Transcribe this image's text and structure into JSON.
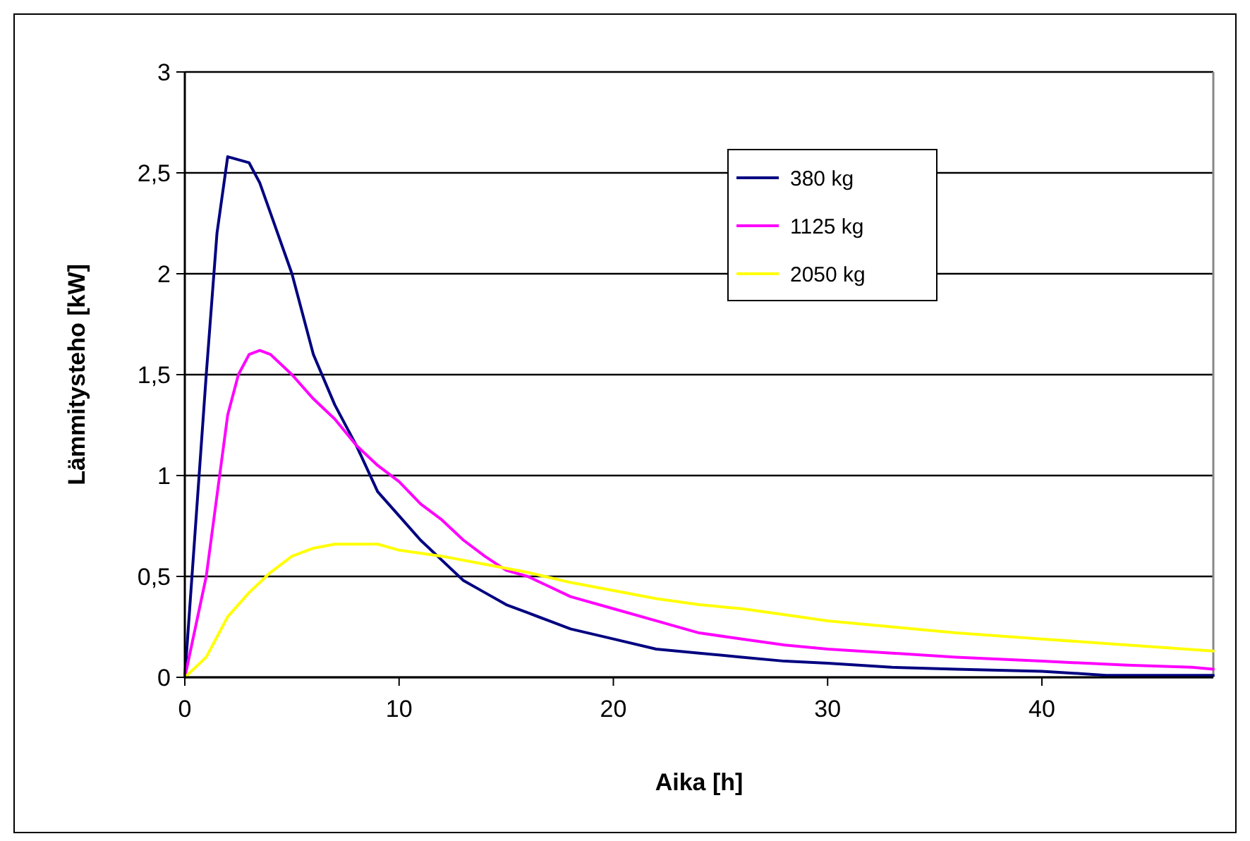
{
  "chart_data": {
    "type": "line",
    "xlabel": "Aika [h]",
    "ylabel": "Lämmitysteho [kW]",
    "xlim": [
      0,
      48
    ],
    "xticks": [
      0,
      10,
      20,
      30,
      40
    ],
    "ylim": [
      0,
      3
    ],
    "yticks": [
      0,
      {
        "value": 0.5,
        "label": "0,5"
      },
      1,
      {
        "value": 1.5,
        "label": "1,5"
      },
      2,
      {
        "value": 2.5,
        "label": "2,5"
      },
      3
    ],
    "grid": "y",
    "legend": "top right",
    "marker": "none",
    "line_style": "solid",
    "series": [
      {
        "name": "380 kg",
        "color": "#000080",
        "x": [
          0,
          1,
          1.5,
          2,
          3,
          3.5,
          4,
          5,
          6,
          7,
          8,
          9,
          10,
          11,
          12,
          13,
          14,
          15,
          16,
          17,
          18,
          20,
          22,
          24,
          26,
          28,
          30,
          33,
          36,
          40,
          43,
          48
        ],
        "values": [
          0,
          1.5,
          2.2,
          2.58,
          2.55,
          2.45,
          2.3,
          2.0,
          1.6,
          1.35,
          1.15,
          0.92,
          0.8,
          0.68,
          0.58,
          0.48,
          0.42,
          0.36,
          0.32,
          0.28,
          0.24,
          0.19,
          0.14,
          0.12,
          0.1,
          0.08,
          0.07,
          0.05,
          0.04,
          0.03,
          0.01,
          0.01
        ]
      },
      {
        "name": "1125 kg",
        "color": "#ff00ff",
        "x": [
          0,
          1,
          1.5,
          2,
          2.5,
          3,
          3.5,
          4,
          5,
          6,
          7,
          8,
          9,
          10,
          11,
          12,
          13,
          14,
          15,
          16,
          17,
          18,
          20,
          22,
          24,
          26,
          28,
          30,
          33,
          36,
          40,
          44,
          47,
          48
        ],
        "values": [
          0,
          0.5,
          0.9,
          1.3,
          1.5,
          1.6,
          1.62,
          1.6,
          1.5,
          1.38,
          1.28,
          1.15,
          1.05,
          0.97,
          0.86,
          0.78,
          0.68,
          0.6,
          0.53,
          0.5,
          0.45,
          0.4,
          0.34,
          0.28,
          0.22,
          0.19,
          0.16,
          0.14,
          0.12,
          0.1,
          0.08,
          0.06,
          0.05,
          0.04
        ]
      },
      {
        "name": "2050 kg",
        "color": "#ffff00",
        "x": [
          0,
          1,
          1.5,
          2,
          3,
          4,
          5,
          6,
          7,
          9,
          10,
          12,
          14,
          16,
          18,
          20,
          22,
          24,
          26,
          28,
          30,
          33,
          36,
          40,
          44,
          48
        ],
        "values": [
          0,
          0.1,
          0.2,
          0.3,
          0.42,
          0.52,
          0.6,
          0.64,
          0.66,
          0.66,
          0.63,
          0.6,
          0.56,
          0.52,
          0.47,
          0.43,
          0.39,
          0.36,
          0.34,
          0.31,
          0.28,
          0.25,
          0.22,
          0.19,
          0.16,
          0.13
        ]
      }
    ]
  }
}
